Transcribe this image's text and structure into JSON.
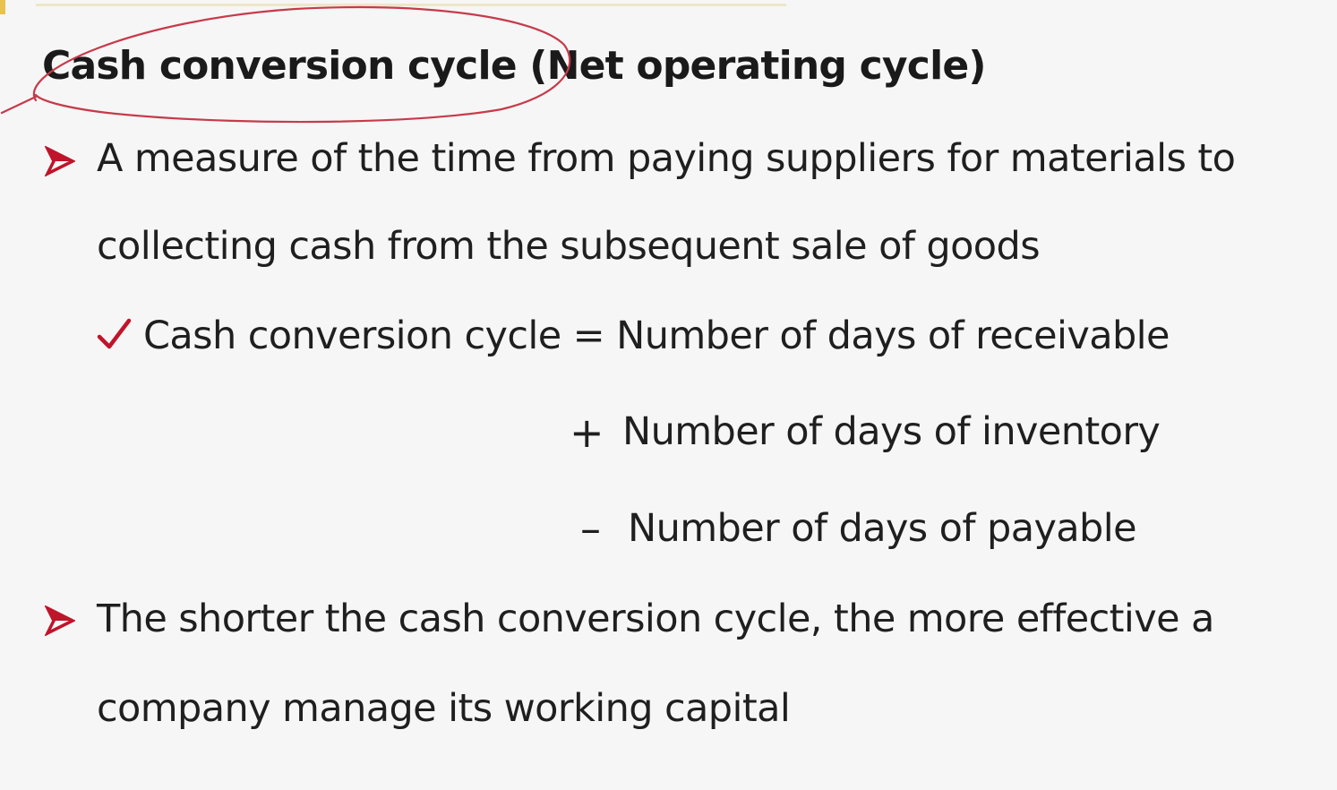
{
  "slide": {
    "title": "Cash conversion cycle (Net operating cycle)",
    "bullets": [
      {
        "icon": "arrow-bullet-icon",
        "line1": "A measure of the time from paying suppliers for materials to",
        "line2": "collecting cash from the subsequent sale of goods"
      },
      {
        "icon": "arrow-bullet-icon",
        "line1": "The shorter the cash conversion cycle, the more effective a",
        "line2": "company manage its working capital"
      }
    ],
    "formula": {
      "icon": "checkmark-icon",
      "lhs": "Cash conversion cycle = Number of days of receivable",
      "plus_sign": "+",
      "term2": "Number of days of inventory",
      "minus_sign": "–",
      "term3": "Number of days of payable"
    }
  },
  "colors": {
    "bullet_red": "#c0142b",
    "annotation_red": "#c73a4a",
    "text": "#1f1f1f",
    "background": "#f6f6f6"
  }
}
